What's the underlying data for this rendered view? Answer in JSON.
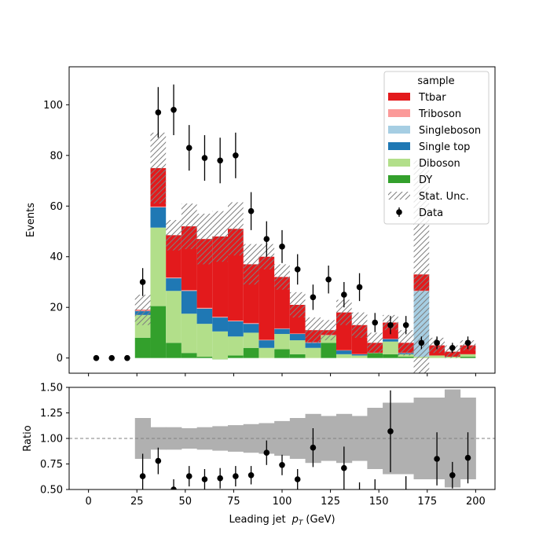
{
  "chart_data": {
    "type": "histogram-stacked",
    "xlabel": "Leading jet",
    "xlabel_symbol": "p",
    "xlabel_subscript": "T",
    "xlabel_unit": "(GeV)",
    "ylabel_main": "Events",
    "ylabel_ratio": "Ratio",
    "xlim": [
      -10,
      210
    ],
    "ylim_main": [
      -6,
      115
    ],
    "ylim_ratio": [
      0.5,
      1.5
    ],
    "x_ticks": [
      0,
      25,
      50,
      75,
      100,
      125,
      150,
      175,
      200
    ],
    "x_tick_labels": [
      "0",
      "25",
      "50",
      "75",
      "100",
      "125",
      "150",
      "175",
      "200"
    ],
    "y_ticks_main": [
      0,
      20,
      40,
      60,
      80,
      100
    ],
    "y_tick_labels_main": [
      "0",
      "20",
      "40",
      "60",
      "80",
      "100"
    ],
    "y_ticks_ratio": [
      0.5,
      0.75,
      1.0,
      1.25,
      1.5
    ],
    "y_tick_labels_ratio": [
      "0.50",
      "0.75",
      "1.00",
      "1.25",
      "1.50"
    ],
    "bin_edges": [
      0,
      8,
      16,
      24,
      32,
      40,
      48,
      56,
      64,
      72,
      80,
      88,
      96,
      104,
      112,
      120,
      128,
      136,
      144,
      152,
      160,
      168,
      176,
      184,
      192,
      200
    ],
    "legend": {
      "title": "sample",
      "position": "upper right",
      "entries": [
        "Ttbar",
        "Triboson",
        "Singleboson",
        "Single top",
        "Diboson",
        "DY",
        "Stat. Unc.",
        "Data"
      ]
    },
    "colors": {
      "Ttbar": "#e31a1c",
      "Triboson": "#fb9a99",
      "Singleboson": "#a6cee3",
      "Single top": "#1f78b4",
      "Diboson": "#b2df8a",
      "DY": "#33a02c",
      "Stat. Unc.": "#7f7f7f",
      "band": "#b0b0b0"
    },
    "series": [
      {
        "name": "DY",
        "values": [
          0,
          0,
          0,
          8,
          20.5,
          6,
          2,
          0.5,
          -0.5,
          1,
          4,
          0,
          3.5,
          1.5,
          0,
          6,
          0,
          0,
          2,
          1.5,
          0.5,
          0,
          0,
          0,
          0.5
        ]
      },
      {
        "name": "Diboson",
        "values": [
          0,
          0,
          0,
          9,
          31,
          20.5,
          15.5,
          13,
          11,
          7.5,
          6,
          4,
          6,
          5.5,
          4,
          3,
          1.5,
          1,
          0,
          5,
          1,
          0.5,
          1,
          0.5,
          1
        ]
      },
      {
        "name": "Single top",
        "values": [
          0,
          0,
          0,
          1.5,
          8,
          5,
          9,
          6,
          5.5,
          6,
          3.5,
          3,
          2,
          2.5,
          2,
          0,
          1.5,
          0.5,
          0,
          1,
          0.5,
          0,
          0,
          0,
          0
        ]
      },
      {
        "name": "Singleboson",
        "values": [
          0,
          0,
          0,
          0,
          0,
          0,
          0,
          0,
          0,
          0,
          0,
          0,
          0,
          0,
          0,
          0,
          0,
          0,
          0,
          0,
          0,
          26,
          0,
          0,
          0
        ]
      },
      {
        "name": "Triboson",
        "values": [
          0,
          0,
          0,
          0.3,
          0.3,
          0.3,
          0.3,
          0.3,
          0.3,
          0.3,
          0.3,
          0.2,
          0.2,
          0.2,
          0.2,
          0.1,
          0.1,
          0.1,
          0.1,
          0.1,
          0.1,
          0.1,
          0,
          0,
          0
        ]
      },
      {
        "name": "Ttbar",
        "values": [
          0,
          0,
          0,
          0.2,
          15.2,
          16.7,
          25.2,
          27.2,
          31.7,
          36.2,
          23.2,
          32.8,
          20.3,
          11.3,
          4.8,
          1.9,
          14.9,
          11.4,
          3.9,
          6.4,
          3.9,
          6.4,
          4,
          2,
          3.5
        ]
      }
    ],
    "stat_unc": [
      0,
      0,
      0,
      6,
      14,
      6,
      9,
      10,
      10,
      10.5,
      8,
      5,
      5,
      5,
      5,
      4,
      5,
      5,
      4,
      3,
      5,
      45,
      3,
      2.5,
      2
    ],
    "ratio_band_half_width": [
      0,
      0,
      0,
      0.2,
      0.11,
      0.11,
      0.1,
      0.11,
      0.12,
      0.13,
      0.14,
      0.15,
      0.17,
      0.2,
      0.24,
      0.22,
      0.24,
      0.22,
      0.3,
      0.35,
      0.35,
      0.4,
      0.4,
      0.48,
      0.4
    ],
    "data": {
      "name": "Data",
      "x": [
        4,
        12,
        20,
        28,
        36,
        44,
        52,
        60,
        68,
        76,
        84,
        92,
        100,
        108,
        116,
        124,
        132,
        140,
        148,
        156,
        164,
        172,
        180,
        188,
        196
      ],
      "y": [
        0,
        0,
        0,
        30,
        97,
        98,
        83,
        79,
        78,
        80,
        58,
        47,
        44,
        35,
        24,
        31,
        25,
        28,
        14,
        13,
        13,
        6,
        6,
        4,
        6
      ],
      "err": [
        0,
        0,
        0,
        5.5,
        10,
        10,
        9,
        9,
        9,
        9,
        7.5,
        7,
        6.5,
        6,
        5,
        5.5,
        5,
        5.5,
        3.8,
        3.6,
        3.6,
        2.5,
        2.5,
        2,
        2.5
      ]
    },
    "ratio": {
      "x": [
        28,
        36,
        44,
        52,
        60,
        68,
        76,
        84,
        92,
        100,
        108,
        116,
        132,
        156,
        180,
        188,
        196
      ],
      "y": [
        0.63,
        0.78,
        0.5,
        0.63,
        0.6,
        0.61,
        0.63,
        0.64,
        0.86,
        0.74,
        0.6,
        0.91,
        0.71,
        1.07,
        0.8,
        0.64,
        0.81
      ],
      "err": [
        0.22,
        0.13,
        0.1,
        0.1,
        0.1,
        0.1,
        0.1,
        0.09,
        0.12,
        0.1,
        0.1,
        0.19,
        0.21,
        0.4,
        0.26,
        0.13,
        0.25
      ]
    },
    "ratio_extra_segments": [
      {
        "x": 140,
        "lo": 0.5,
        "hi": 0.57
      },
      {
        "x": 148,
        "lo": 0.5,
        "hi": 0.6
      },
      {
        "x": 164,
        "lo": 0.5,
        "hi": 0.63
      }
    ],
    "reference_line": 1.0
  }
}
